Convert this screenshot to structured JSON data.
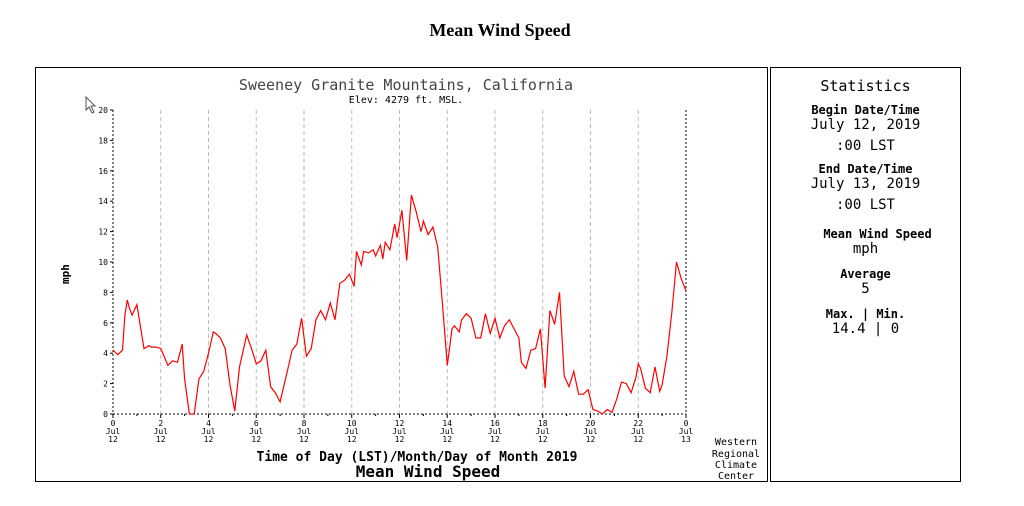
{
  "page_title": "Mean Wind Speed",
  "chart": {
    "location": "Sweeney Granite Mountains, California",
    "elevation": "Elev: 4279 ft. MSL.",
    "ylabel": "mph",
    "xlabel": "Time of Day  (LST)/Month/Day of Month 2019",
    "footer_title": "Mean Wind Speed",
    "credit": [
      "Western",
      "Regional",
      "Climate",
      "Center"
    ],
    "line_color": "#ff0000"
  },
  "stats": {
    "heading": "Statistics",
    "begin_label": "Begin Date/Time",
    "begin_date": "July 12, 2019",
    "begin_time": ":00 LST",
    "end_label": "End Date/Time",
    "end_date": "July 13, 2019",
    "end_time": ":00 LST",
    "variable_label": "Mean Wind Speed",
    "units": "mph",
    "avg_label": "Average",
    "avg_value": "5",
    "maxmin_label": "Max. | Min.",
    "maxmin_value": "14.4 | 0"
  },
  "chart_data": {
    "type": "line",
    "ylim": [
      0,
      20
    ],
    "xlim": [
      0,
      24
    ],
    "y_ticks": [
      0,
      2,
      4,
      6,
      8,
      10,
      12,
      14,
      16,
      18,
      20
    ],
    "x_ticks": [
      {
        "h": 0,
        "l1": "0",
        "l2": "Jul",
        "l3": "12"
      },
      {
        "h": 2,
        "l1": "2",
        "l2": "Jul",
        "l3": "12"
      },
      {
        "h": 4,
        "l1": "4",
        "l2": "Jul",
        "l3": "12"
      },
      {
        "h": 6,
        "l1": "6",
        "l2": "Jul",
        "l3": "12"
      },
      {
        "h": 8,
        "l1": "8",
        "l2": "Jul",
        "l3": "12"
      },
      {
        "h": 10,
        "l1": "10",
        "l2": "Jul",
        "l3": "12"
      },
      {
        "h": 12,
        "l1": "12",
        "l2": "Jul",
        "l3": "12"
      },
      {
        "h": 14,
        "l1": "14",
        "l2": "Jul",
        "l3": "12"
      },
      {
        "h": 16,
        "l1": "16",
        "l2": "Jul",
        "l3": "12"
      },
      {
        "h": 18,
        "l1": "18",
        "l2": "Jul",
        "l3": "12"
      },
      {
        "h": 20,
        "l1": "20",
        "l2": "Jul",
        "l3": "12"
      },
      {
        "h": 22,
        "l1": "22",
        "l2": "Jul",
        "l3": "12"
      },
      {
        "h": 24,
        "l1": "0",
        "l2": "Jul",
        "l3": "13"
      }
    ],
    "grid": true,
    "x": [
      0,
      0.2,
      0.4,
      0.5,
      0.6,
      0.7,
      0.8,
      1.0,
      1.3,
      1.5,
      1.6,
      1.8,
      2.0,
      2.3,
      2.5,
      2.7,
      2.9,
      3.0,
      3.2,
      3.4,
      3.6,
      3.8,
      4.0,
      4.2,
      4.3,
      4.5,
      4.7,
      4.9,
      5.1,
      5.3,
      5.6,
      5.8,
      6.0,
      6.2,
      6.4,
      6.6,
      6.8,
      7.0,
      7.3,
      7.5,
      7.7,
      7.9,
      8.1,
      8.3,
      8.5,
      8.7,
      8.9,
      9.1,
      9.3,
      9.5,
      9.7,
      9.9,
      10.1,
      10.2,
      10.4,
      10.5,
      10.7,
      10.9,
      11.0,
      11.2,
      11.3,
      11.4,
      11.6,
      11.8,
      11.9,
      12.1,
      12.3,
      12.5,
      12.7,
      12.9,
      13.0,
      13.2,
      13.4,
      13.6,
      13.8,
      14.0,
      14.2,
      14.3,
      14.5,
      14.6,
      14.8,
      15.0,
      15.2,
      15.4,
      15.6,
      15.8,
      16.0,
      16.2,
      16.4,
      16.6,
      16.8,
      17.0,
      17.1,
      17.3,
      17.5,
      17.7,
      17.9,
      18.1,
      18.3,
      18.5,
      18.7,
      18.9,
      19.1,
      19.3,
      19.5,
      19.7,
      19.9,
      20.1,
      20.3,
      20.5,
      20.7,
      20.9,
      21.1,
      21.3,
      21.5,
      21.7,
      21.9,
      22.0,
      22.1,
      22.3,
      22.5,
      22.7,
      22.9,
      23.0,
      23.2,
      23.4,
      23.6,
      23.8,
      24.0
    ],
    "y": [
      4.2,
      3.9,
      4.2,
      6.5,
      7.5,
      6.9,
      6.5,
      7.2,
      4.3,
      4.5,
      4.4,
      4.4,
      4.3,
      3.2,
      3.5,
      3.4,
      4.6,
      2.3,
      0,
      0,
      2.3,
      2.8,
      4.0,
      5.4,
      5.3,
      5.0,
      4.3,
      1.9,
      0.2,
      3.1,
      5.2,
      4.3,
      3.3,
      3.5,
      4.2,
      1.8,
      1.4,
      0.8,
      2.8,
      4.2,
      4.6,
      6.3,
      3.8,
      4.3,
      6.2,
      6.8,
      6.2,
      7.3,
      6.2,
      8.6,
      8.8,
      9.2,
      8.4,
      10.7,
      9.8,
      10.7,
      10.6,
      10.8,
      10.4,
      11.1,
      10.2,
      11.3,
      10.8,
      12.5,
      11.6,
      13.4,
      10.1,
      14.4,
      13.3,
      12.0,
      12.7,
      11.8,
      12.3,
      11.0,
      7.2,
      3.2,
      5.6,
      5.8,
      5.4,
      6.2,
      6.6,
      6.3,
      5.0,
      5.0,
      6.6,
      5.3,
      6.3,
      5.0,
      5.8,
      6.2,
      5.6,
      5.0,
      3.4,
      3.0,
      4.2,
      4.3,
      5.6,
      1.7,
      6.8,
      5.9,
      8.0,
      2.5,
      1.8,
      2.8,
      1.3,
      1.3,
      1.6,
      0.3,
      0.2,
      0,
      0.3,
      0.1,
      1.0,
      2.1,
      2.0,
      1.4,
      2.4,
      3.3,
      3.0,
      1.7,
      1.4,
      3.1,
      1.5,
      1.9,
      3.8,
      6.6,
      10.0,
      8.9,
      8.1
    ]
  }
}
